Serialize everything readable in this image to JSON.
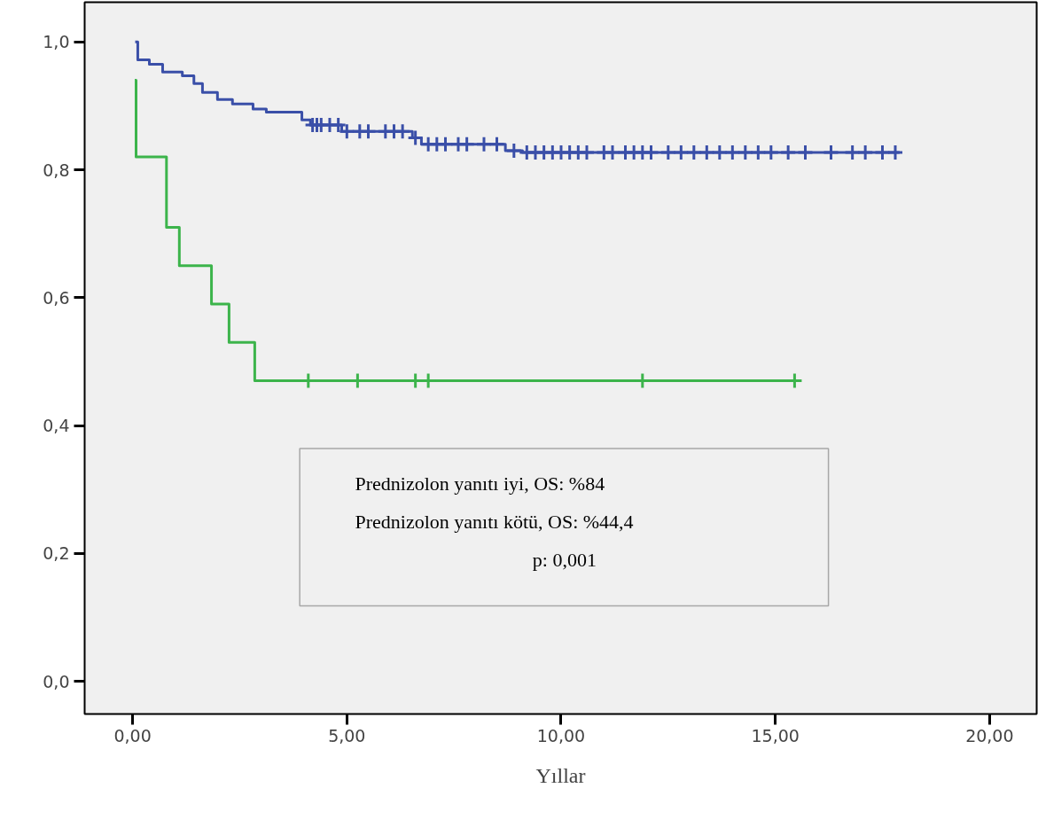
{
  "chart_data": {
    "type": "step",
    "xlabel": "Yıllar",
    "xlim": [
      -1.12,
      21.1
    ],
    "ylim": [
      -0.051,
      1.062
    ],
    "xticks": [
      {
        "value": 0,
        "label": "0,00"
      },
      {
        "value": 5,
        "label": "5,00"
      },
      {
        "value": 10,
        "label": "10,00"
      },
      {
        "value": 15,
        "label": "15,00"
      },
      {
        "value": 20,
        "label": "20,00"
      }
    ],
    "yticks": [
      {
        "value": 0,
        "label": "0,0"
      },
      {
        "value": 0.2,
        "label": "0,2"
      },
      {
        "value": 0.4,
        "label": "0,4"
      },
      {
        "value": 0.6,
        "label": "0,6"
      },
      {
        "value": 0.8,
        "label": "0,8"
      },
      {
        "value": 1.0,
        "label": "1,0"
      }
    ],
    "grid": false,
    "series": [
      {
        "color": "#3a4fa8",
        "x": [
          0.06,
          0.12,
          0.39,
          0.7,
          1.16,
          1.43,
          1.63,
          1.98,
          2.33,
          2.81,
          3.12,
          3.95,
          4.15,
          4.88,
          6.53,
          6.74,
          8.7,
          9.1,
          17.9
        ],
        "values": [
          1.0,
          0.972,
          0.965,
          0.953,
          0.947,
          0.935,
          0.921,
          0.91,
          0.903,
          0.895,
          0.89,
          0.878,
          0.87,
          0.86,
          0.85,
          0.84,
          0.83,
          0.827,
          0.827
        ]
      },
      {
        "color": "#3cb44b",
        "x": [
          0.05,
          0.08,
          0.79,
          0.79,
          1.09,
          1.84,
          2.25,
          2.85,
          15.5
        ],
        "values": [
          0.94,
          0.82,
          0.76,
          0.71,
          0.65,
          0.59,
          0.53,
          0.47,
          0.47
        ]
      },
      {
        "type": "scatter",
        "marker": "cross",
        "color": "#3a4fa8",
        "x": [
          4.2,
          4.3,
          4.4,
          4.6,
          4.8,
          5.0,
          5.3,
          5.5,
          5.9,
          6.1,
          6.3,
          6.6,
          6.9,
          7.1,
          7.3,
          7.6,
          7.8,
          8.2,
          8.5,
          8.9,
          9.2,
          9.4,
          9.6,
          9.8,
          10.0,
          10.2,
          10.4,
          10.6,
          11.0,
          11.2,
          11.5,
          11.7,
          11.9,
          12.1,
          12.5,
          12.8,
          13.1,
          13.4,
          13.7,
          14.0,
          14.3,
          14.6,
          14.9,
          15.3,
          15.7,
          16.3,
          16.8,
          17.1,
          17.5,
          17.8
        ],
        "values": [
          0.87,
          0.87,
          0.87,
          0.87,
          0.87,
          0.86,
          0.86,
          0.86,
          0.86,
          0.86,
          0.86,
          0.85,
          0.84,
          0.84,
          0.84,
          0.84,
          0.84,
          0.84,
          0.84,
          0.83,
          0.827,
          0.827,
          0.827,
          0.827,
          0.827,
          0.827,
          0.827,
          0.827,
          0.827,
          0.827,
          0.827,
          0.827,
          0.827,
          0.827,
          0.827,
          0.827,
          0.827,
          0.827,
          0.827,
          0.827,
          0.827,
          0.827,
          0.827,
          0.827,
          0.827,
          0.827,
          0.827,
          0.827,
          0.827,
          0.827
        ]
      },
      {
        "type": "scatter",
        "marker": "cross",
        "color": "#3cb44b",
        "x": [
          4.1,
          5.25,
          6.6,
          6.9,
          11.9,
          15.45
        ],
        "values": [
          0.47,
          0.47,
          0.47,
          0.47,
          0.47,
          0.47
        ]
      }
    ],
    "annotations": [
      "Prednizolon yanıtı iyi, OS: %84",
      "Prednizolon yanıtı kötü, OS: %44,4",
      "p: 0,001"
    ]
  }
}
